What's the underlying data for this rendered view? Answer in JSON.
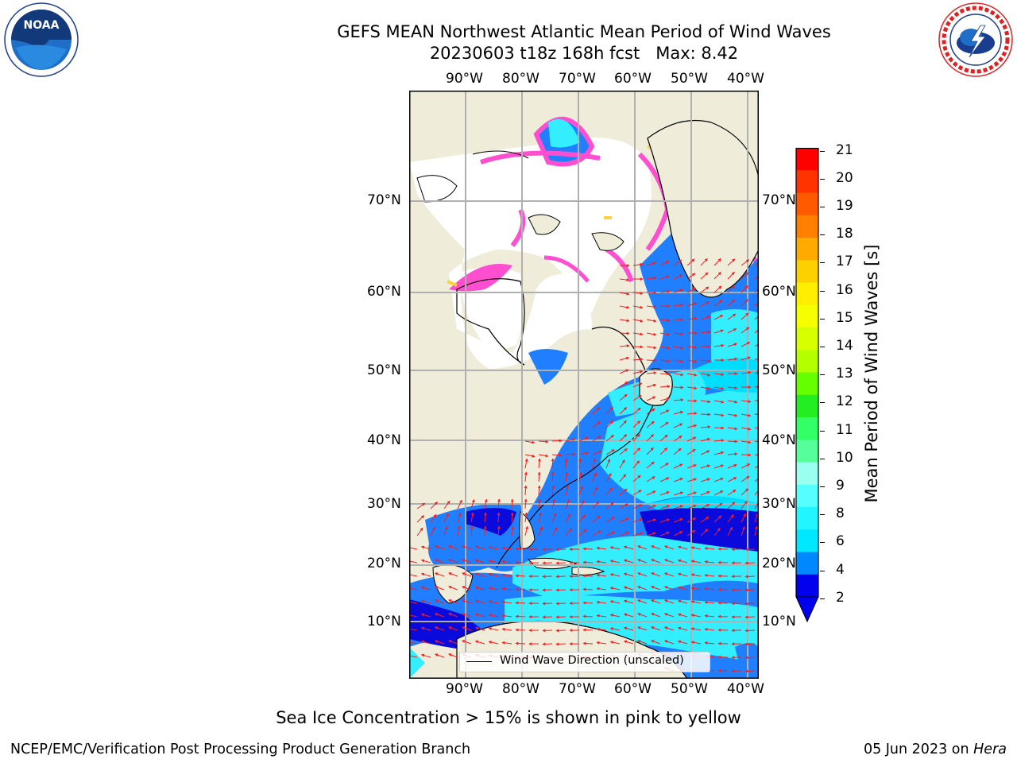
{
  "header": {
    "title_line1": "GEFS MEAN Northwest Atlantic Mean Period of Wind Waves",
    "title_line2": "20230603 t18z 168h fcst   Max: 8.42"
  },
  "logos": {
    "left": {
      "icon": "noaa-logo-icon",
      "text": "NOAA"
    },
    "right": {
      "icon": "nws-logo-icon",
      "text": "NATIONAL WEATHER SERVICE"
    }
  },
  "map": {
    "lon_labels": [
      "90°W",
      "80°W",
      "70°W",
      "60°W",
      "50°W",
      "40°W"
    ],
    "lat_labels": [
      "70°N",
      "60°N",
      "50°N",
      "40°N",
      "30°N",
      "20°N",
      "10°N"
    ],
    "legend_label": "Wind Wave Direction (unscaled)",
    "colors": {
      "land": "#efedda",
      "ice_pink": "#ff4fd0",
      "ice_yellow": "#ffd23c",
      "arrow": "#ff1a1a"
    }
  },
  "colorbar": {
    "label": "Mean Period of Wind Waves [s]",
    "ticks": [
      "21",
      "20",
      "19",
      "18",
      "17",
      "16",
      "15",
      "14",
      "13",
      "12",
      "11",
      "10",
      "9",
      "8",
      "6",
      "4",
      "2"
    ],
    "colors": [
      "#ff0000",
      "#ff3300",
      "#ff5a00",
      "#ff8000",
      "#ffaa00",
      "#ffd000",
      "#ffee00",
      "#f5ff00",
      "#d8ff00",
      "#b4ff00",
      "#66ff00",
      "#22ee22",
      "#33ff66",
      "#55ff99",
      "#99ffee",
      "#55ffff",
      "#22f5ff",
      "#00e8ff",
      "#0088ff",
      "#0000ee"
    ]
  },
  "footer": {
    "note": "Sea Ice Concentration > 15% is shown in pink to yellow",
    "left": "NCEP/EMC/Verification Post Processing Product Generation Branch",
    "right_date": "05 Jun 2023 on ",
    "right_host": "Hera"
  }
}
